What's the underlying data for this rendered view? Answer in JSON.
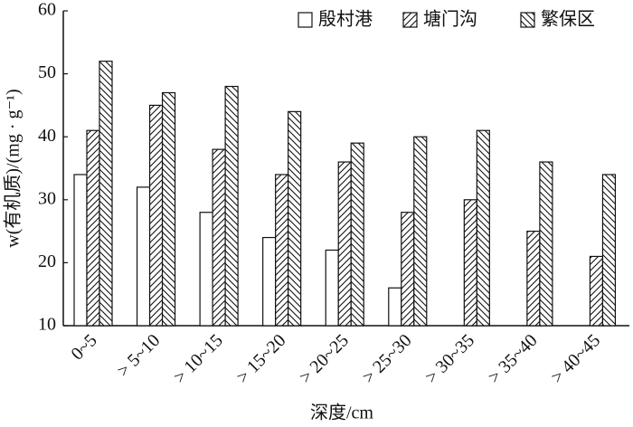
{
  "chart_data": {
    "type": "bar",
    "x_label": "深度/cm",
    "y_label": "w(有机质)/(mg · g⁻¹)",
    "categories": [
      "0~5",
      "> 5~10",
      "> 10~15",
      "> 15~20",
      "> 20~25",
      "> 25~30",
      "> 30~35",
      "> 35~40",
      "> 40~45"
    ],
    "series": [
      {
        "name": "殷村港",
        "color": "#ffffff",
        "hatch": "none",
        "values": [
          34,
          32,
          28,
          24,
          22,
          16,
          null,
          null,
          null
        ]
      },
      {
        "name": "塘门沟",
        "color": "#ffffff",
        "hatch": "forward",
        "values": [
          41,
          45,
          38,
          34,
          36,
          28,
          30,
          25,
          21
        ]
      },
      {
        "name": "繁保区",
        "color": "#ffffff",
        "hatch": "backward",
        "values": [
          52,
          47,
          48,
          44,
          39,
          40,
          41,
          36,
          34
        ]
      }
    ],
    "ylim": [
      10,
      60
    ],
    "yticks": [
      10,
      20,
      30,
      40,
      50,
      60
    ],
    "legend": "top-right"
  }
}
